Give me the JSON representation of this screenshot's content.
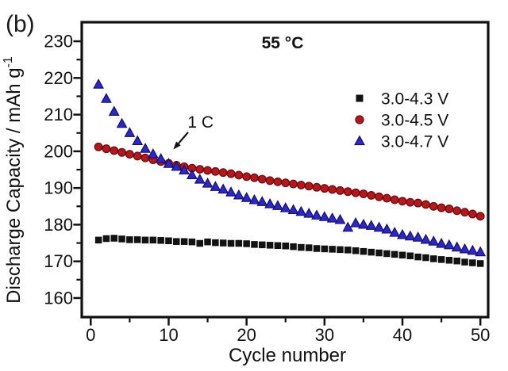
{
  "panel_label": "(b)",
  "chart_data": {
    "type": "scatter",
    "title": "55 °C",
    "xlabel": "Cycle number",
    "ylabel_base": "Discharge Capacity / mAh g",
    "ylabel_exponent": "-1",
    "xlim": [
      -1.15,
      51.0
    ],
    "ylim": [
      154.8,
      235.2
    ],
    "x_major_ticks": [
      0,
      10,
      20,
      30,
      40,
      50
    ],
    "x_minor_ticks": [
      5,
      15,
      25,
      35,
      45
    ],
    "y_major_ticks": [
      160,
      170,
      180,
      190,
      200,
      210,
      220,
      230
    ],
    "y_minor_ticks": [
      165,
      175,
      185,
      195,
      205,
      215,
      225
    ],
    "grid": false,
    "legend_position": "upper-right",
    "annotation": {
      "text": "1 C",
      "text_at": [
        14.1,
        208.0
      ],
      "arrow_from": [
        12.5,
        205.2
      ],
      "arrow_to": [
        10.6,
        200.5
      ]
    },
    "x": [
      1,
      2,
      3,
      4,
      5,
      6,
      7,
      8,
      9,
      10,
      11,
      12,
      13,
      14,
      15,
      16,
      17,
      18,
      19,
      20,
      21,
      22,
      23,
      24,
      25,
      26,
      27,
      28,
      29,
      30,
      31,
      32,
      33,
      34,
      35,
      36,
      37,
      38,
      39,
      40,
      41,
      42,
      43,
      44,
      45,
      46,
      47,
      48,
      49,
      50
    ],
    "series": [
      {
        "name": "3.0-4.3 V",
        "marker": "square",
        "color": "#121212",
        "edge": "#000000",
        "values": [
          175.8,
          176.2,
          176.3,
          176.1,
          175.9,
          175.9,
          175.8,
          175.8,
          175.7,
          175.6,
          175.4,
          175.4,
          175.3,
          174.9,
          175.3,
          175.1,
          175.0,
          174.9,
          174.9,
          174.8,
          174.6,
          174.5,
          174.4,
          174.3,
          174.2,
          174.0,
          173.8,
          173.7,
          173.5,
          173.4,
          173.3,
          173.2,
          173.1,
          172.9,
          172.7,
          172.5,
          172.3,
          172.1,
          171.9,
          171.7,
          171.5,
          171.2,
          171.0,
          170.7,
          170.5,
          170.3,
          170.1,
          169.8,
          169.6,
          169.4
        ]
      },
      {
        "name": "3.0-4.5 V",
        "marker": "circle",
        "color": "#b3181d",
        "edge": "#6e0b10",
        "values": [
          201.2,
          200.7,
          200.2,
          199.7,
          199.2,
          198.7,
          198.2,
          197.7,
          197.2,
          196.7,
          196.2,
          195.8,
          195.4,
          195.1,
          194.8,
          194.5,
          194.2,
          193.9,
          193.5,
          193.1,
          192.8,
          192.4,
          192.0,
          191.7,
          191.4,
          191.1,
          190.8,
          190.5,
          190.2,
          189.9,
          189.6,
          189.3,
          189.0,
          188.7,
          188.4,
          188.0,
          187.6,
          187.2,
          186.8,
          186.4,
          186.1,
          185.9,
          185.5,
          185.0,
          184.6,
          184.3,
          183.8,
          183.4,
          182.9,
          182.3
        ]
      },
      {
        "name": "3.0-4.7 V",
        "marker": "triangle",
        "color": "#2c27c8",
        "edge": "#161065",
        "values": [
          218.2,
          214.3,
          210.8,
          207.5,
          205.0,
          202.8,
          200.7,
          199.2,
          197.9,
          196.6,
          195.8,
          194.8,
          193.5,
          192.3,
          191.2,
          190.3,
          189.6,
          188.8,
          188.0,
          187.3,
          186.7,
          186.2,
          185.6,
          185.1,
          184.5,
          184.0,
          183.5,
          183.0,
          182.5,
          182.1,
          181.7,
          181.3,
          179.2,
          180.4,
          180.0,
          179.7,
          179.2,
          178.7,
          177.8,
          177.2,
          176.8,
          176.5,
          175.9,
          175.4,
          174.8,
          174.4,
          173.8,
          173.3,
          172.9,
          172.5
        ]
      }
    ]
  }
}
